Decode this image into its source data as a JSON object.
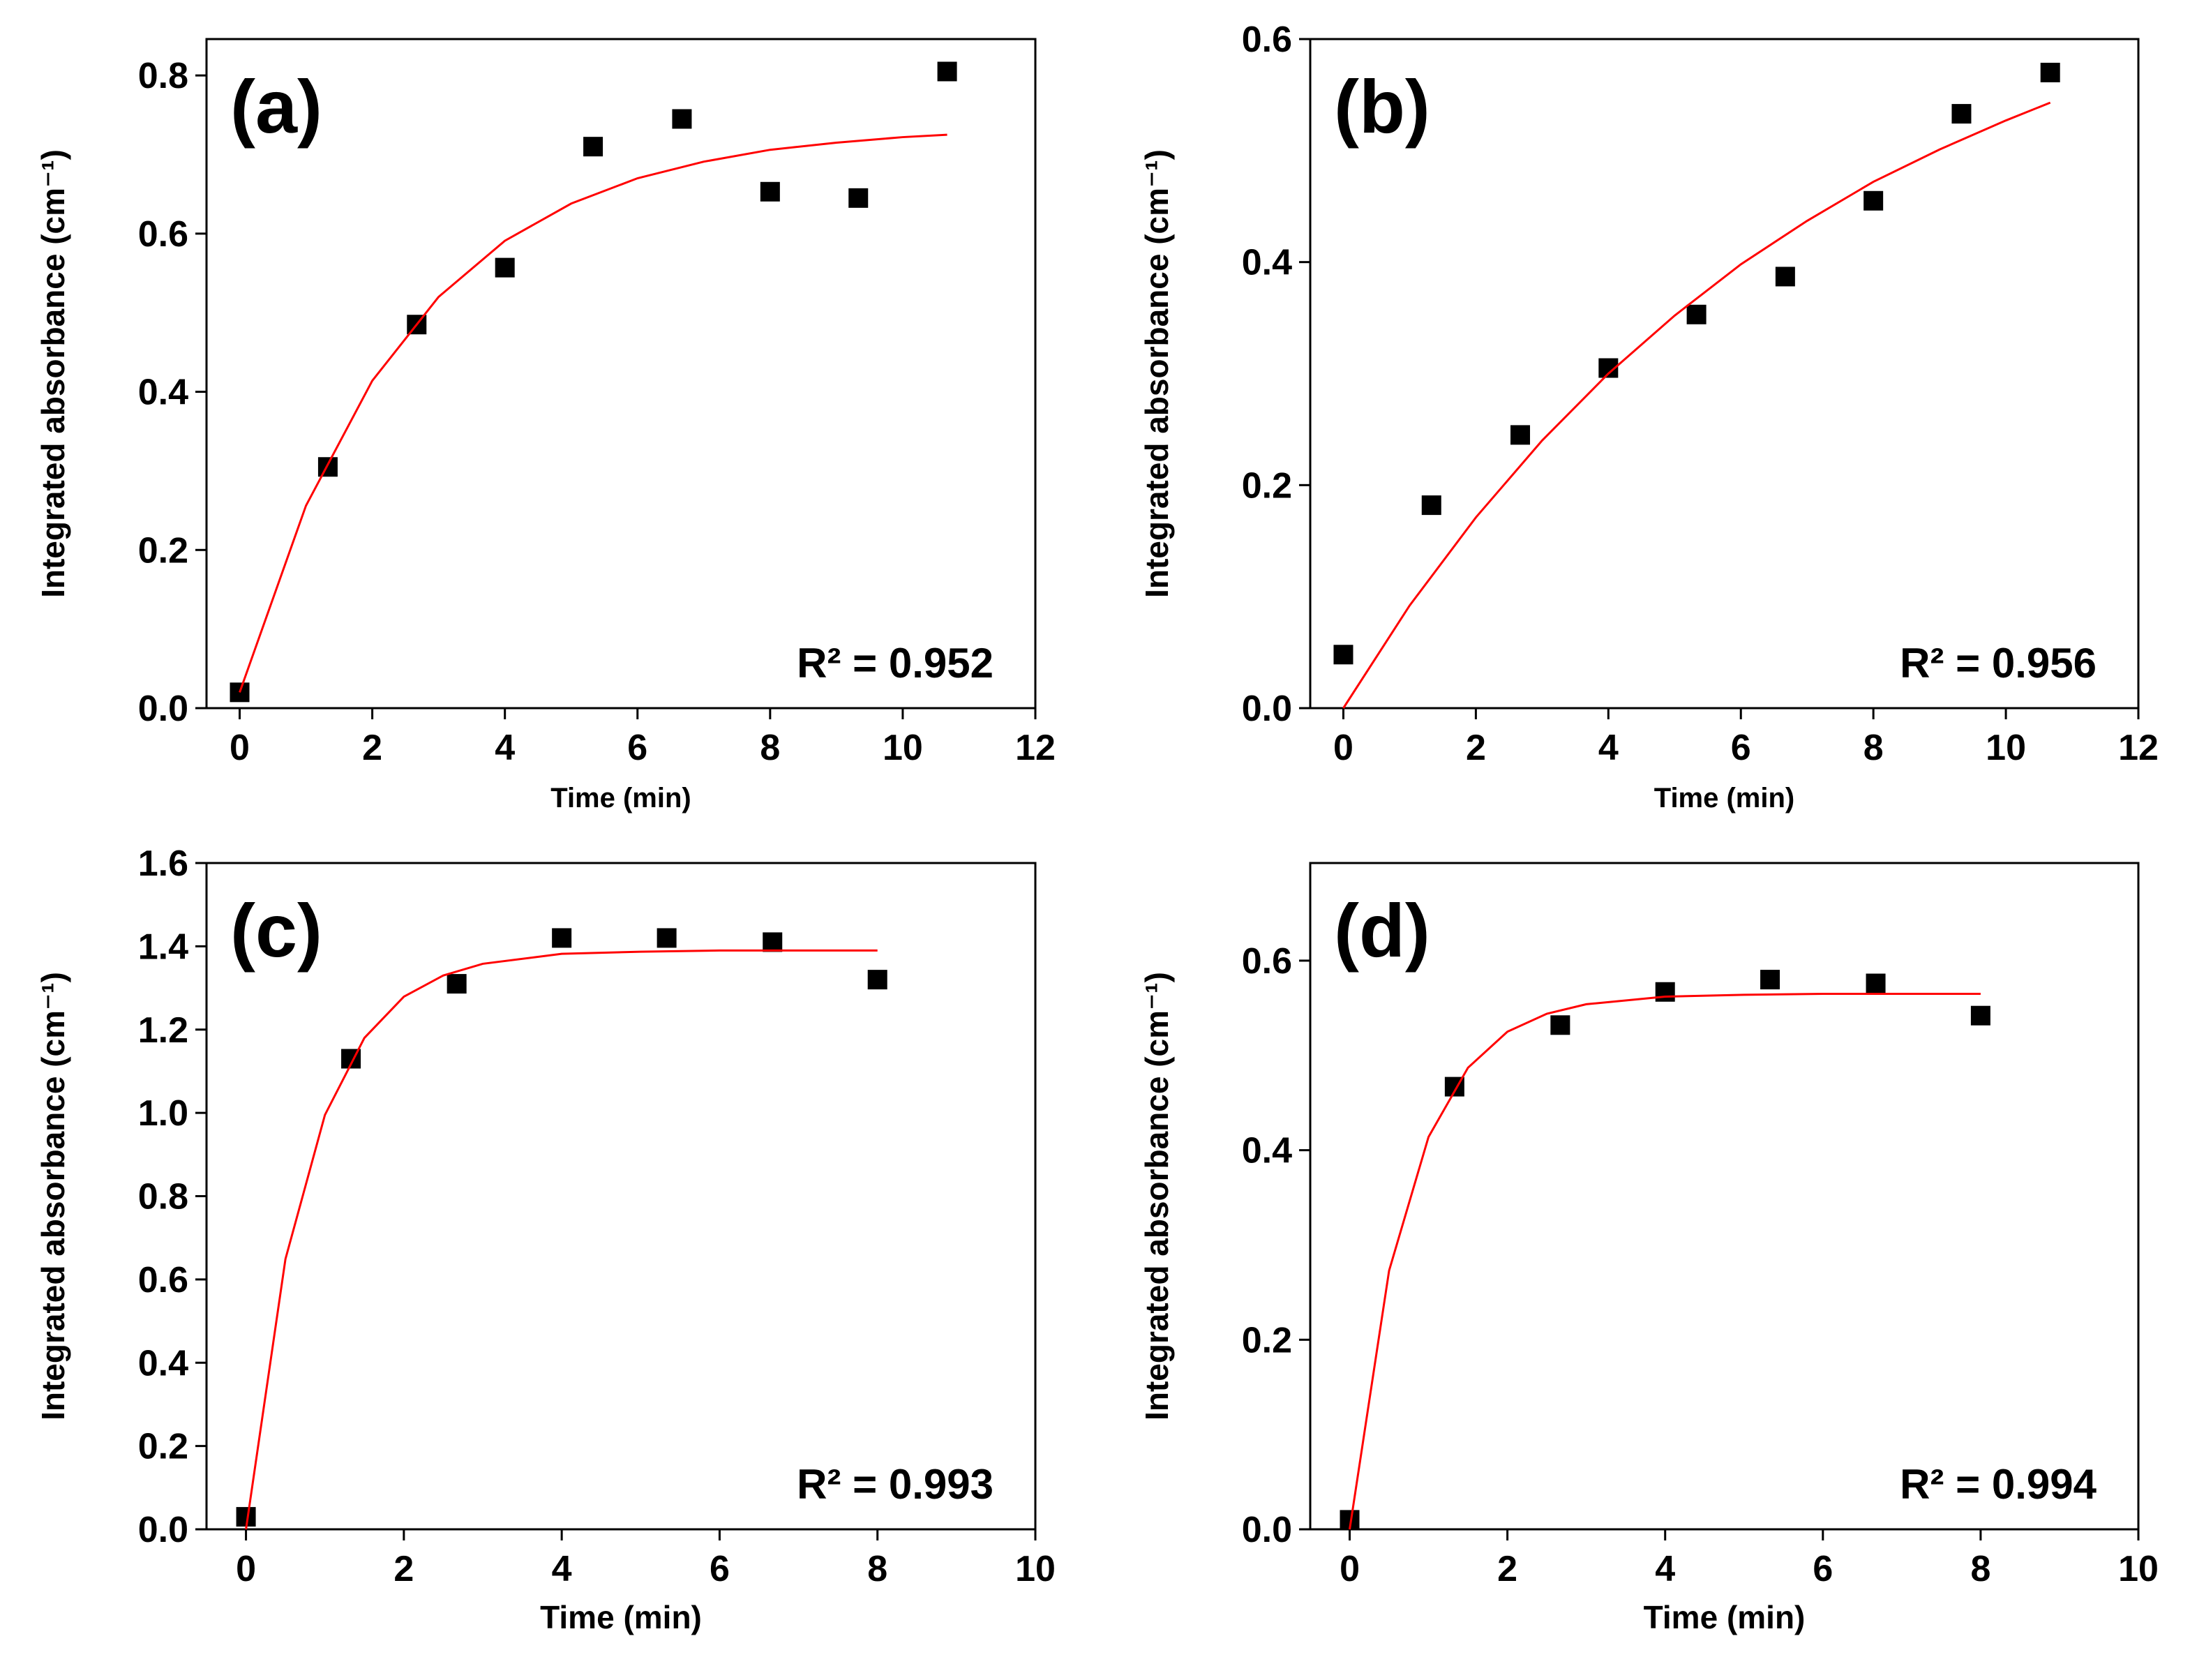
{
  "chart_data": [
    {
      "type": "scatter",
      "label": "(a)",
      "annotation": "R² = 0.952",
      "xlabel": "Time (min)",
      "ylabel": "Integrated absorbance (cm⁻¹)",
      "xlim": [
        -0.5,
        12
      ],
      "xticks": [
        0,
        2,
        4,
        6,
        8,
        10,
        12
      ],
      "ylim": [
        0,
        0.846
      ],
      "yticks": [
        {
          "value": 0,
          "label": "0.0"
        },
        0.2,
        0.4,
        0.6,
        0.8
      ],
      "series": [
        {
          "marker": "square",
          "color": "#000000",
          "x": [
            0,
            1.33,
            2.67,
            4,
            5.33,
            6.67,
            8,
            9.33,
            10.67
          ],
          "values": [
            0.02,
            0.305,
            0.485,
            0.557,
            0.71,
            0.745,
            0.653,
            0.645,
            0.805
          ]
        },
        {
          "marker": "line",
          "color": "#ff0000",
          "x": [
            0,
            1,
            2,
            3,
            4,
            5,
            6,
            7,
            8,
            9,
            10,
            10.67
          ],
          "values": [
            0.02,
            0.256,
            0.414,
            0.52,
            0.591,
            0.638,
            0.67,
            0.691,
            0.706,
            0.715,
            0.722,
            0.725
          ]
        }
      ]
    },
    {
      "type": "scatter",
      "label": "(b)",
      "annotation": "R² = 0.956",
      "xlabel": "Time (min)",
      "ylabel": "Integrated absorbance (cm⁻¹)",
      "xlim": [
        -0.5,
        12
      ],
      "xticks": [
        0,
        2,
        4,
        6,
        8,
        10,
        12
      ],
      "ylim": [
        0,
        0.6
      ],
      "yticks": [
        {
          "value": 0,
          "label": "0.0"
        },
        0.2,
        0.4,
        0.6
      ],
      "series": [
        {
          "marker": "square",
          "color": "#000000",
          "x": [
            0,
            1.33,
            2.67,
            4,
            5.33,
            6.67,
            8,
            9.33,
            10.67
          ],
          "values": [
            0.048,
            0.182,
            0.245,
            0.305,
            0.353,
            0.387,
            0.455,
            0.533,
            0.57
          ]
        },
        {
          "marker": "line",
          "color": "#ff0000",
          "x": [
            0,
            1,
            2,
            3,
            4,
            5,
            6,
            7,
            8,
            9,
            10,
            10.67
          ],
          "values": [
            0,
            0.092,
            0.171,
            0.24,
            0.3,
            0.352,
            0.398,
            0.437,
            0.472,
            0.501,
            0.527,
            0.543
          ]
        }
      ]
    },
    {
      "type": "scatter",
      "label": "(c)",
      "annotation": "R² = 0.993",
      "xlabel": "Time (min)",
      "ylabel": "Integrated absorbance (cm⁻¹)",
      "xlim": [
        -0.5,
        10
      ],
      "xticks": [
        0,
        2,
        4,
        6,
        8,
        10
      ],
      "ylim": [
        0,
        1.6
      ],
      "yticks": [
        {
          "value": 0,
          "label": "0.0"
        },
        0.2,
        0.4,
        0.6,
        0.8,
        {
          "value": 1,
          "label": "1.0"
        },
        1.2,
        1.4,
        1.6
      ],
      "series": [
        {
          "marker": "square",
          "color": "#000000",
          "x": [
            0,
            1.33,
            2.67,
            4,
            5.33,
            6.67,
            8
          ],
          "values": [
            0.03,
            1.13,
            1.31,
            1.42,
            1.42,
            1.41,
            1.32
          ]
        },
        {
          "marker": "line",
          "color": "#ff0000",
          "x": [
            0,
            0.5,
            1,
            1.5,
            2,
            2.5,
            3,
            4,
            5,
            6,
            7,
            8
          ],
          "values": [
            0,
            0.649,
            0.995,
            1.18,
            1.279,
            1.33,
            1.358,
            1.382,
            1.387,
            1.39,
            1.39,
            1.39
          ]
        }
      ]
    },
    {
      "type": "scatter",
      "label": "(d)",
      "annotation": "R² = 0.994",
      "xlabel": "Time (min)",
      "ylabel": "Integrated absorbance (cm⁻¹)",
      "xlim": [
        -0.5,
        10
      ],
      "xticks": [
        0,
        2,
        4,
        6,
        8,
        10
      ],
      "ylim": [
        0,
        0.703
      ],
      "yticks": [
        {
          "value": 0,
          "label": "0.0"
        },
        0.2,
        0.4,
        0.6
      ],
      "series": [
        {
          "marker": "square",
          "color": "#000000",
          "x": [
            0,
            1.33,
            2.67,
            4,
            5.33,
            6.67,
            8
          ],
          "values": [
            0.01,
            0.467,
            0.532,
            0.567,
            0.58,
            0.576,
            0.542
          ]
        },
        {
          "marker": "line",
          "color": "#ff0000",
          "x": [
            0,
            0.5,
            1,
            1.5,
            2,
            2.5,
            3,
            4,
            5,
            6,
            7,
            8
          ],
          "values": [
            0,
            0.273,
            0.414,
            0.487,
            0.525,
            0.544,
            0.554,
            0.562,
            0.564,
            0.565,
            0.565,
            0.565
          ]
        }
      ]
    }
  ]
}
